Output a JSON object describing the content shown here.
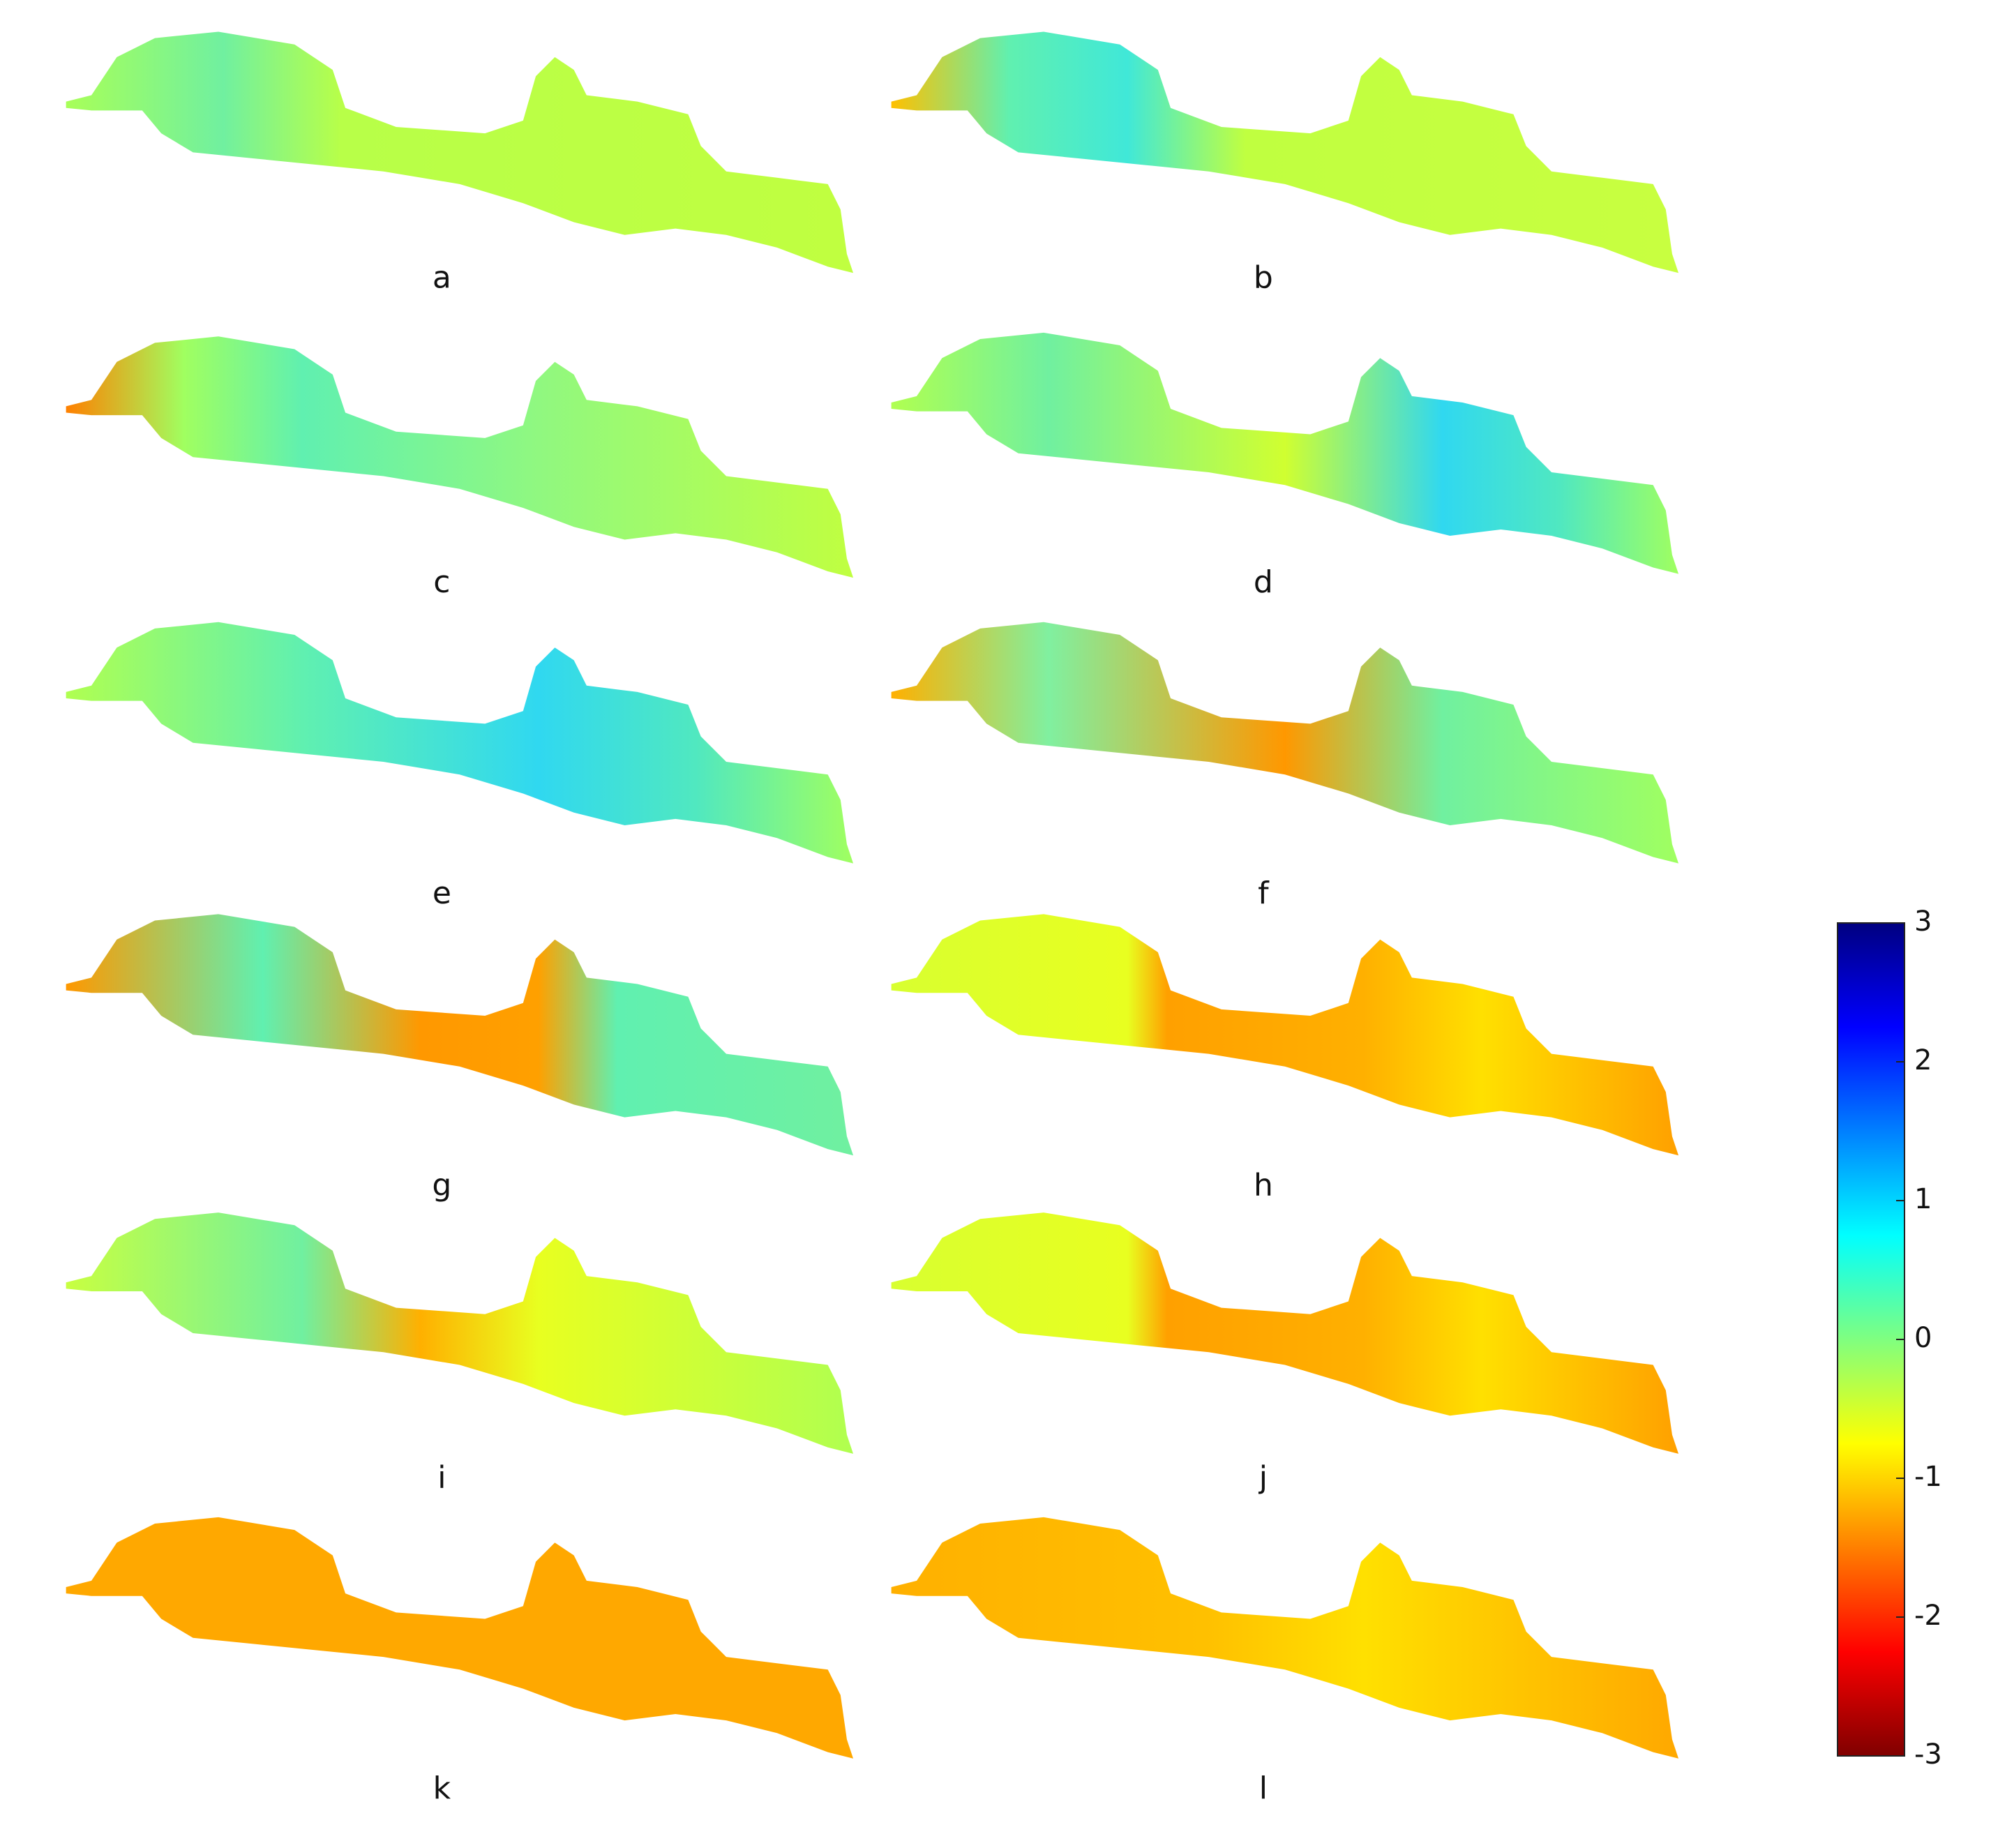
{
  "panel_labels": [
    "a",
    "b",
    "c",
    "d",
    "e",
    "f",
    "g",
    "h",
    "i",
    "j",
    "k",
    "l"
  ],
  "colorbar": {
    "lim": [
      -3,
      3
    ],
    "ticks": [
      3,
      2,
      1,
      0,
      -1,
      -2,
      -3
    ]
  }
}
